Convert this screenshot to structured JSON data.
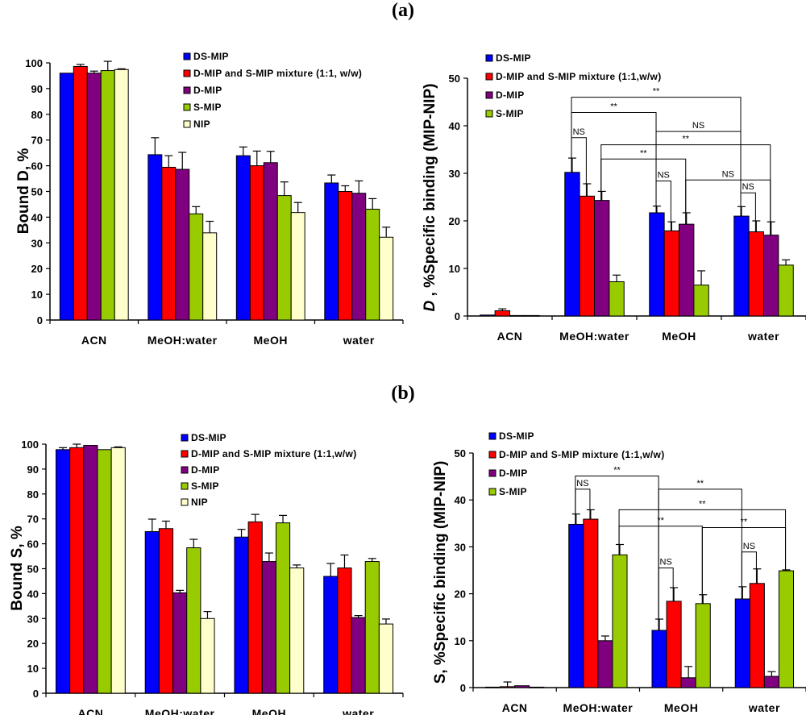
{
  "panels": {
    "a": "(a)",
    "b": "(b)"
  },
  "colors": {
    "DS-MIP": "#0000FF",
    "Mix": "#FF0000",
    "D-MIP": "#800080",
    "S-MIP": "#99CC00",
    "NIP": "#FFFFCC"
  },
  "chart_data": [
    {
      "id": "a_left",
      "type": "bar",
      "title": "",
      "ylabel": "Bound D, %",
      "ylim": [
        0,
        100
      ],
      "yticks": [
        0,
        10,
        20,
        30,
        40,
        50,
        60,
        70,
        80,
        90,
        100
      ],
      "categories": [
        "ACN",
        "MeOH:water",
        "MeOH",
        "water"
      ],
      "legend_position": "top-right",
      "series": [
        {
          "name": "DS-MIP",
          "color": "#0000FF",
          "values": [
            96.0,
            64.3,
            63.9,
            53.3
          ],
          "errors": [
            0,
            6.6,
            3.4,
            3.1
          ]
        },
        {
          "name": "D-MIP and S-MIP mixture (1:1, w/w)",
          "color": "#FF0000",
          "values": [
            98.6,
            59.4,
            60.0,
            50.0
          ],
          "errors": [
            0.8,
            4.5,
            5.7,
            2.2
          ]
        },
        {
          "name": "D-MIP",
          "color": "#800080",
          "values": [
            96.0,
            58.6,
            61.2,
            49.3
          ],
          "errors": [
            0.8,
            6.6,
            4.4,
            4.8
          ]
        },
        {
          "name": "S-MIP",
          "color": "#99CC00",
          "values": [
            97.0,
            41.3,
            48.4,
            43.1
          ],
          "errors": [
            3.6,
            2.8,
            5.3,
            4.1
          ]
        },
        {
          "name": "NIP",
          "color": "#FFFFCC",
          "values": [
            97.4,
            33.9,
            41.8,
            32.2
          ],
          "errors": [
            0.3,
            4.5,
            3.9,
            3.9
          ]
        }
      ],
      "annotations": []
    },
    {
      "id": "a_right",
      "type": "bar",
      "title": "",
      "ylabel_var": "D",
      "ylabel": " , %Specific binding (MIP-NIP)",
      "ylim": [
        0,
        50
      ],
      "yticks": [
        0,
        10,
        20,
        30,
        40,
        50
      ],
      "categories": [
        "ACN",
        "MeOH:water",
        "MeOH",
        "water"
      ],
      "legend_position": "top-left",
      "series": [
        {
          "name": "DS-MIP",
          "color": "#0000FF",
          "values": [
            0.2,
            30.2,
            21.7,
            21.0
          ],
          "errors": [
            0,
            3.0,
            1.4,
            2.0
          ]
        },
        {
          "name": "D-MIP and S-MIP mixture (1:1,w/w)",
          "color": "#FF0000",
          "values": [
            1.1,
            25.2,
            17.9,
            17.7
          ],
          "errors": [
            0.4,
            2.6,
            1.9,
            2.3
          ]
        },
        {
          "name": "D-MIP",
          "color": "#800080",
          "values": [
            0.1,
            24.3,
            19.3,
            17.0
          ],
          "errors": [
            0,
            1.9,
            2.4,
            2.8
          ]
        },
        {
          "name": "S-MIP",
          "color": "#99CC00",
          "values": [
            0.1,
            7.2,
            6.5,
            10.7
          ],
          "errors": [
            0,
            1.4,
            3.0,
            1.1
          ]
        }
      ],
      "annotations": [
        {
          "from": [
            1,
            0
          ],
          "to": [
            3,
            0
          ],
          "y": 46.0,
          "label": "**"
        },
        {
          "from": [
            1,
            0
          ],
          "to": [
            2,
            0
          ],
          "y": 42.8,
          "label": "**"
        },
        {
          "from": [
            1,
            0
          ],
          "to": [
            1,
            1
          ],
          "y": 37.5,
          "label": "NS"
        },
        {
          "from": [
            2,
            0
          ],
          "to": [
            3,
            0
          ],
          "y": 38.8,
          "label": "NS"
        },
        {
          "from": [
            1,
            2
          ],
          "to": [
            3,
            2
          ],
          "y": 36.0,
          "label": "**"
        },
        {
          "from": [
            1,
            2
          ],
          "to": [
            2,
            2
          ],
          "y": 33.0,
          "label": "**"
        },
        {
          "from": [
            2,
            0
          ],
          "to": [
            2,
            1
          ],
          "y": 28.4,
          "label": "NS"
        },
        {
          "from": [
            2,
            2
          ],
          "to": [
            3,
            2
          ],
          "y": 28.6,
          "label": "NS"
        },
        {
          "from": [
            3,
            0
          ],
          "to": [
            3,
            1
          ],
          "y": 25.9,
          "label": "NS"
        }
      ]
    },
    {
      "id": "b_left",
      "type": "bar",
      "title": "",
      "ylabel": "Bound S, %",
      "ylim": [
        0,
        100
      ],
      "yticks": [
        0,
        10,
        20,
        30,
        40,
        50,
        60,
        70,
        80,
        90,
        100
      ],
      "categories": [
        "ACN",
        "MeOH:water",
        "MeOH",
        "water"
      ],
      "legend_position": "top-right",
      "series": [
        {
          "name": "DS-MIP",
          "color": "#0000FF",
          "values": [
            97.8,
            64.9,
            62.7,
            46.9
          ],
          "errors": [
            0.8,
            5.0,
            3.1,
            5.2
          ]
        },
        {
          "name": "D-MIP and S-MIP mixture (1:1,w/w)",
          "color": "#FF0000",
          "values": [
            98.6,
            66.1,
            68.8,
            50.3
          ],
          "errors": [
            1.4,
            3.0,
            3.0,
            5.2
          ]
        },
        {
          "name": "D-MIP",
          "color": "#800080",
          "values": [
            99.5,
            40.3,
            52.9,
            30.4
          ],
          "errors": [
            0,
            1.0,
            3.4,
            0.8
          ]
        },
        {
          "name": "S-MIP",
          "color": "#99CC00",
          "values": [
            97.8,
            58.4,
            68.4,
            52.9
          ],
          "errors": [
            0,
            3.4,
            3.0,
            1.2
          ]
        },
        {
          "name": "NIP",
          "color": "#FFFFCC",
          "values": [
            98.6,
            30.0,
            50.3,
            27.8
          ],
          "errors": [
            0.3,
            2.8,
            1.2,
            2.0
          ]
        }
      ],
      "annotations": []
    },
    {
      "id": "b_right",
      "type": "bar",
      "title": "",
      "ylabel": "S, %Specific binding (MIP-NIP)",
      "ylim": [
        0,
        50
      ],
      "yticks": [
        0,
        10,
        20,
        30,
        40,
        50
      ],
      "categories": [
        "ACN",
        "MeOH:water",
        "MeOH",
        "water"
      ],
      "legend_position": "top-left",
      "series": [
        {
          "name": "DS-MIP",
          "color": "#0000FF",
          "values": [
            0.1,
            34.8,
            12.2,
            18.9
          ],
          "errors": [
            0,
            2.2,
            2.4,
            2.6
          ]
        },
        {
          "name": "D-MIP and S-MIP mixture (1:1,w/w)",
          "color": "#FF0000",
          "values": [
            0.2,
            35.9,
            18.4,
            22.2
          ],
          "errors": [
            1.0,
            2.0,
            2.9,
            3.1
          ]
        },
        {
          "name": "D-MIP",
          "color": "#800080",
          "values": [
            0.4,
            10.0,
            2.1,
            2.4
          ],
          "errors": [
            0,
            1.0,
            2.4,
            1.0
          ]
        },
        {
          "name": "S-MIP",
          "color": "#99CC00",
          "values": [
            0.1,
            28.3,
            17.9,
            24.9
          ],
          "errors": [
            0,
            2.2,
            1.9,
            0.2
          ]
        }
      ],
      "annotations": [
        {
          "from": [
            1,
            0
          ],
          "to": [
            1,
            1
          ],
          "y": 42.3,
          "label": "NS"
        },
        {
          "from": [
            1,
            0
          ],
          "to": [
            2,
            0
          ],
          "y": 45.1,
          "label": "**"
        },
        {
          "from": [
            2,
            0
          ],
          "to": [
            3,
            0
          ],
          "y": 42.3,
          "label": "**"
        },
        {
          "from": [
            1,
            3
          ],
          "to": [
            3,
            3
          ],
          "y": 37.9,
          "label": "**"
        },
        {
          "from": [
            1,
            3
          ],
          "to": [
            2,
            3
          ],
          "y": 34.4,
          "label": "**"
        },
        {
          "from": [
            2,
            3
          ],
          "to": [
            3,
            3
          ],
          "y": 34.1,
          "label": "**"
        },
        {
          "from": [
            2,
            0
          ],
          "to": [
            2,
            1
          ],
          "y": 25.5,
          "label": "NS"
        },
        {
          "from": [
            3,
            0
          ],
          "to": [
            3,
            1
          ],
          "y": 28.9,
          "label": "NS"
        }
      ]
    }
  ]
}
